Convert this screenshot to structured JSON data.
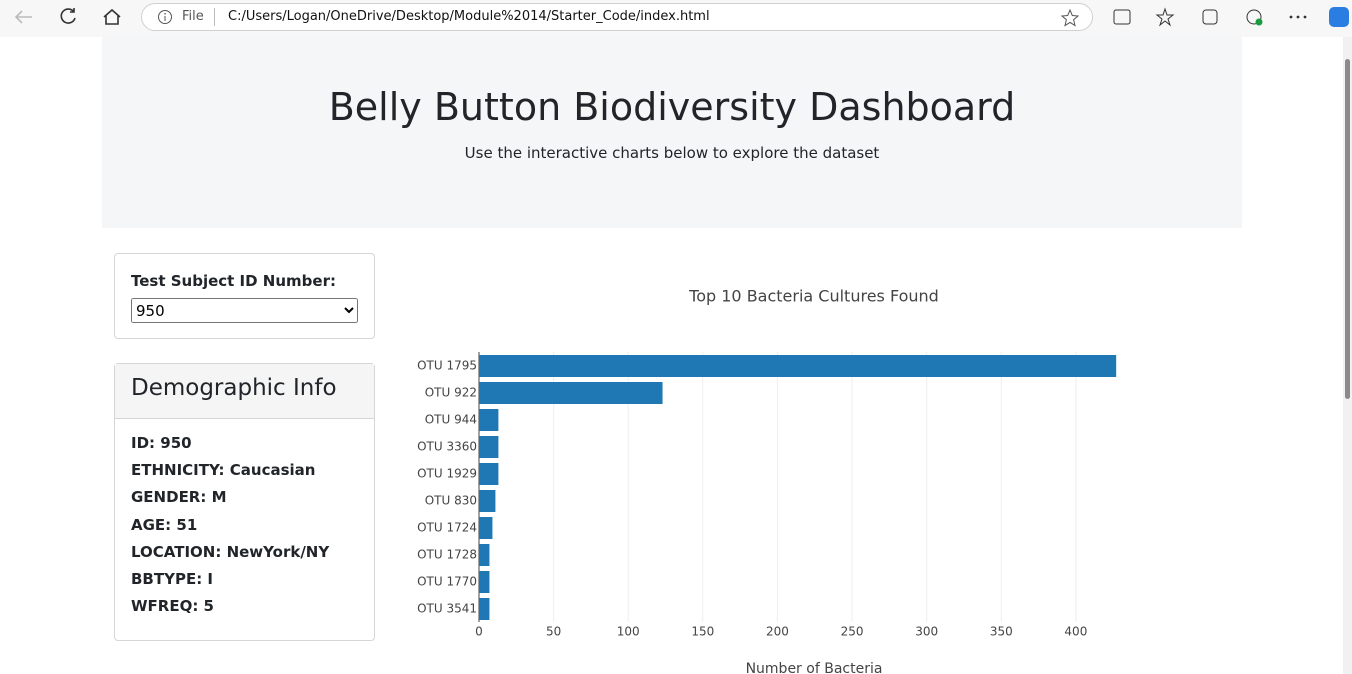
{
  "browser": {
    "scheme_label": "File",
    "url": "C:/Users/Logan/OneDrive/Desktop/Module%2014/Starter_Code/index.html"
  },
  "header": {
    "title": "Belly Button Biodiversity Dashboard",
    "subtitle": "Use the interactive charts below to explore the dataset"
  },
  "selector": {
    "label": "Test Subject ID Number:",
    "selected": "950"
  },
  "demographics": {
    "title": "Demographic Info",
    "lines": [
      "ID: 950",
      "ETHNICITY: Caucasian",
      "GENDER: M",
      "AGE: 51",
      "LOCATION: NewYork/NY",
      "BBTYPE: I",
      "WFREQ: 5"
    ]
  },
  "chart_data": {
    "type": "bar",
    "orientation": "horizontal",
    "title": "Top 10 Bacteria Cultures Found",
    "x_label": "Number of Bacteria",
    "categories": [
      "OTU 1795",
      "OTU 922",
      "OTU 944",
      "OTU 3360",
      "OTU 1929",
      "OTU 830",
      "OTU 1724",
      "OTU 1728",
      "OTU 1770",
      "OTU 3541"
    ],
    "values": [
      427,
      123,
      13,
      13,
      13,
      11,
      9,
      7,
      7,
      7
    ],
    "color": "#1f77b4",
    "xlim": [
      0,
      449
    ],
    "xticks": [
      0,
      50,
      100,
      150,
      200,
      250,
      300,
      350,
      400
    ],
    "grid": true
  }
}
